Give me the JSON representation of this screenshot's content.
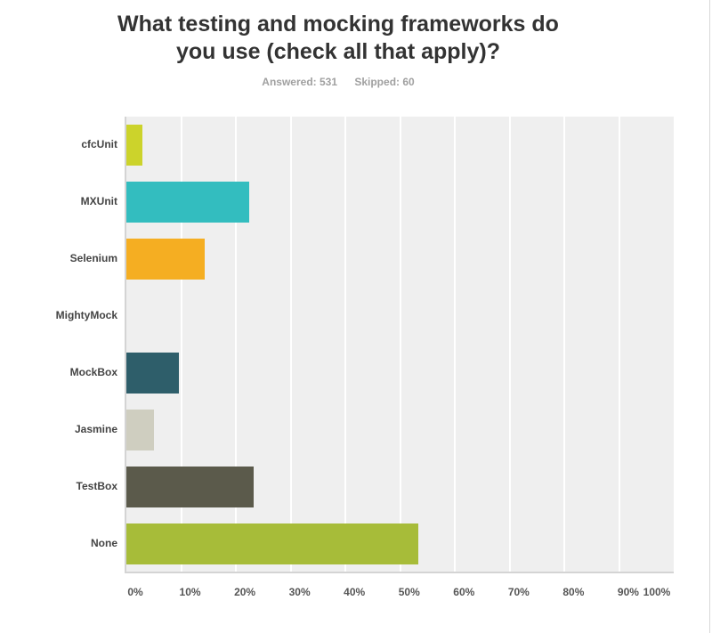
{
  "header": {
    "title_line1": "What testing and mocking frameworks do",
    "title_line2": "you use (check all that apply)?",
    "answered": "Answered: 531",
    "skipped": "Skipped: 60"
  },
  "axis": {
    "ticks": [
      "0%",
      "10%",
      "20%",
      "30%",
      "40%",
      "50%",
      "60%",
      "70%",
      "80%",
      "90%",
      "100%"
    ]
  },
  "categories": [
    {
      "label": "cfcUnit",
      "value": 3.0,
      "color": "#ccd32b"
    },
    {
      "label": "MXUnit",
      "value": 22.5,
      "color": "#33bdbf"
    },
    {
      "label": "Selenium",
      "value": 14.3,
      "color": "#f5ae22"
    },
    {
      "label": "MightyMock",
      "value": 0,
      "color": "#4f8ed1"
    },
    {
      "label": "MockBox",
      "value": 9.6,
      "color": "#2e5e6a"
    },
    {
      "label": "Jasmine",
      "value": 5.0,
      "color": "#cfcec0"
    },
    {
      "label": "TestBox",
      "value": 23.3,
      "color": "#5b5a4b"
    },
    {
      "label": "None",
      "value": 53.3,
      "color": "#a7bc39"
    }
  ],
  "chart_data": {
    "type": "bar",
    "orientation": "horizontal",
    "title": "What testing and mocking frameworks do you use (check all that apply)?",
    "subtitle": "Answered: 531    Skipped: 60",
    "categories": [
      "cfcUnit",
      "MXUnit",
      "Selenium",
      "MightyMock",
      "MockBox",
      "Jasmine",
      "TestBox",
      "None"
    ],
    "values": [
      3.0,
      22.5,
      14.3,
      0,
      9.6,
      5.0,
      23.3,
      53.3
    ],
    "xlabel": "",
    "ylabel": "",
    "xlim": [
      0,
      100
    ],
    "x_tick_labels": [
      "0%",
      "10%",
      "20%",
      "30%",
      "40%",
      "50%",
      "60%",
      "70%",
      "80%",
      "90%",
      "100%"
    ],
    "grid": true,
    "legend": "none",
    "colors": [
      "#ccd32b",
      "#33bdbf",
      "#f5ae22",
      "#4f8ed1",
      "#2e5e6a",
      "#cfcec0",
      "#5b5a4b",
      "#a7bc39"
    ]
  }
}
